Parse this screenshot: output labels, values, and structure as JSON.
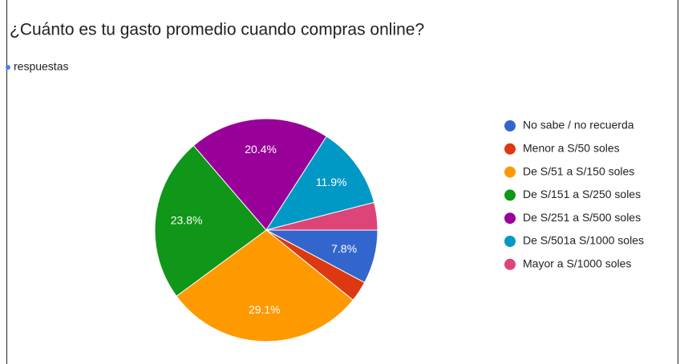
{
  "chart_data": {
    "type": "pie",
    "title": "¿Cuánto es tu gasto promedio cuando compras online?",
    "subtitle": "respuestas",
    "categories": [
      "No sabe / no recuerda",
      "Menor a S/50 soles",
      "De S/51 a S/150 soles",
      "De S/151 a S/250 soles",
      "De S/251 a S/500 soles",
      "De S/501a S/1000 soles",
      "Mayor a S/1000 soles"
    ],
    "values": [
      7.8,
      3.0,
      29.1,
      23.8,
      20.4,
      11.9,
      4.0
    ],
    "value_labels": [
      "7.8%",
      null,
      "29.1%",
      "23.8%",
      "20.4%",
      "11.9%",
      null
    ],
    "colors": [
      "#3366cc",
      "#dc3912",
      "#ff9900",
      "#109618",
      "#990099",
      "#0099c6",
      "#dd4477"
    ],
    "legend": "right"
  }
}
